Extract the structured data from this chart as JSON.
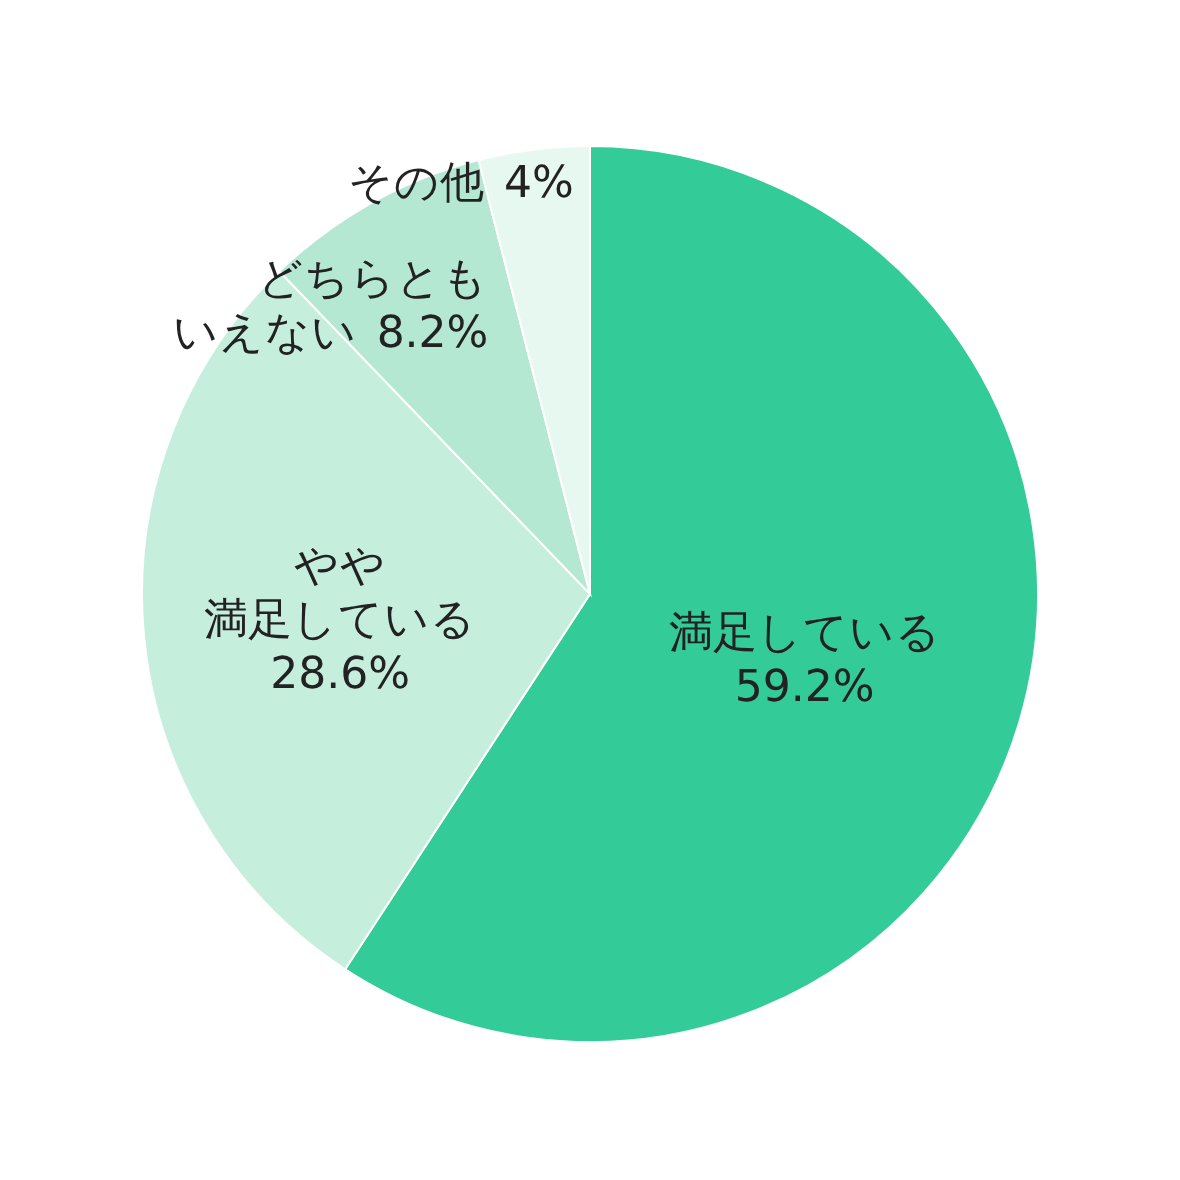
{
  "chart_data": {
    "type": "pie",
    "categories": [
      "満足している",
      "やや満足している",
      "どちらともいえない",
      "その他"
    ],
    "values": [
      59.2,
      28.6,
      8.2,
      4
    ],
    "value_labels": [
      "59.2%",
      "28.6%",
      "8.2%",
      "4%"
    ],
    "colors": [
      "#33cc99",
      "#c6eedd",
      "#b5e8d2",
      "#e6f8f0"
    ]
  }
}
